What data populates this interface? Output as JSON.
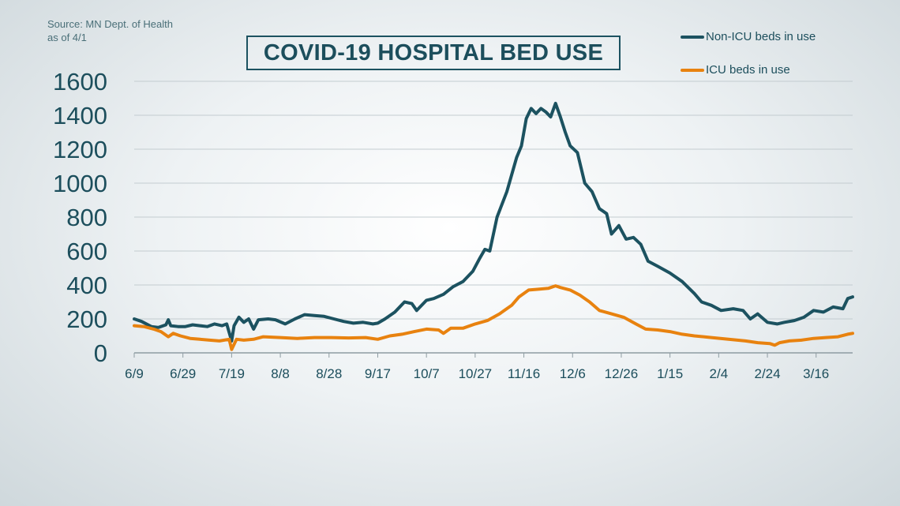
{
  "source": {
    "line1": "Source: MN Dept. of Health",
    "line2": "as of 4/1"
  },
  "colors": {
    "non_icu": "#1c5260",
    "icu": "#e8820f",
    "grid": "#c3ccd0",
    "text": "#1c4e5c"
  },
  "chart_data": {
    "type": "line",
    "title": "COVID-19 HOSPITAL BED USE",
    "xlabel": "",
    "ylabel": "",
    "ylim": [
      0,
      1600
    ],
    "yticks": [
      0,
      200,
      400,
      600,
      800,
      1000,
      1200,
      1400,
      1600
    ],
    "xlim": [
      "6/9",
      "3/31"
    ],
    "xticks": [
      "6/9",
      "6/29",
      "7/19",
      "8/8",
      "8/28",
      "9/17",
      "10/7",
      "10/27",
      "11/16",
      "12/6",
      "12/26",
      "1/15",
      "2/4",
      "2/24",
      "3/16"
    ],
    "grid": "horizontal",
    "legend_position": "top-right",
    "series": [
      {
        "name": "Non-ICU beds in use",
        "color": "#1c5260",
        "points": [
          [
            "6/9",
            200
          ],
          [
            "6/12",
            185
          ],
          [
            "6/16",
            155
          ],
          [
            "6/19",
            150
          ],
          [
            "6/22",
            165
          ],
          [
            "6/23",
            195
          ],
          [
            "6/24",
            160
          ],
          [
            "6/27",
            155
          ],
          [
            "6/30",
            155
          ],
          [
            "7/3",
            165
          ],
          [
            "7/6",
            160
          ],
          [
            "7/9",
            155
          ],
          [
            "7/12",
            170
          ],
          [
            "7/15",
            160
          ],
          [
            "7/17",
            170
          ],
          [
            "7/18",
            120
          ],
          [
            "7/19",
            70
          ],
          [
            "7/20",
            160
          ],
          [
            "7/22",
            210
          ],
          [
            "7/24",
            180
          ],
          [
            "7/26",
            200
          ],
          [
            "7/28",
            140
          ],
          [
            "7/30",
            195
          ],
          [
            "8/3",
            200
          ],
          [
            "8/6",
            195
          ],
          [
            "8/10",
            170
          ],
          [
            "8/14",
            200
          ],
          [
            "8/18",
            225
          ],
          [
            "8/22",
            220
          ],
          [
            "8/26",
            215
          ],
          [
            "8/30",
            200
          ],
          [
            "9/3",
            185
          ],
          [
            "9/7",
            175
          ],
          [
            "9/11",
            180
          ],
          [
            "9/15",
            170
          ],
          [
            "9/17",
            175
          ],
          [
            "9/20",
            200
          ],
          [
            "9/24",
            240
          ],
          [
            "9/28",
            300
          ],
          [
            "10/1",
            290
          ],
          [
            "10/3",
            250
          ],
          [
            "10/7",
            310
          ],
          [
            "10/10",
            320
          ],
          [
            "10/14",
            345
          ],
          [
            "10/18",
            390
          ],
          [
            "10/22",
            420
          ],
          [
            "10/26",
            480
          ],
          [
            "10/29",
            560
          ],
          [
            "10/31",
            610
          ],
          [
            "11/2",
            600
          ],
          [
            "11/5",
            800
          ],
          [
            "11/9",
            950
          ],
          [
            "11/13",
            1150
          ],
          [
            "11/15",
            1220
          ],
          [
            "11/17",
            1380
          ],
          [
            "11/19",
            1440
          ],
          [
            "11/21",
            1410
          ],
          [
            "11/23",
            1440
          ],
          [
            "11/25",
            1420
          ],
          [
            "11/27",
            1390
          ],
          [
            "11/29",
            1470
          ],
          [
            "12/1",
            1390
          ],
          [
            "12/3",
            1300
          ],
          [
            "12/5",
            1220
          ],
          [
            "12/8",
            1180
          ],
          [
            "12/11",
            1000
          ],
          [
            "12/14",
            950
          ],
          [
            "12/17",
            850
          ],
          [
            "12/20",
            820
          ],
          [
            "12/22",
            700
          ],
          [
            "12/25",
            750
          ],
          [
            "12/28",
            670
          ],
          [
            "12/31",
            680
          ],
          [
            "1/3",
            640
          ],
          [
            "1/6",
            540
          ],
          [
            "1/10",
            510
          ],
          [
            "1/15",
            470
          ],
          [
            "1/20",
            420
          ],
          [
            "1/25",
            350
          ],
          [
            "1/28",
            300
          ],
          [
            "2/1",
            280
          ],
          [
            "2/5",
            250
          ],
          [
            "2/10",
            260
          ],
          [
            "2/14",
            250
          ],
          [
            "2/17",
            200
          ],
          [
            "2/20",
            230
          ],
          [
            "2/24",
            180
          ],
          [
            "2/28",
            170
          ],
          [
            "3/3",
            180
          ],
          [
            "3/7",
            190
          ],
          [
            "3/11",
            210
          ],
          [
            "3/15",
            250
          ],
          [
            "3/19",
            240
          ],
          [
            "3/23",
            270
          ],
          [
            "3/27",
            260
          ],
          [
            "3/29",
            320
          ],
          [
            "3/31",
            330
          ]
        ]
      },
      {
        "name": "ICU beds in use",
        "color": "#e8820f",
        "points": [
          [
            "6/9",
            160
          ],
          [
            "6/13",
            155
          ],
          [
            "6/17",
            140
          ],
          [
            "6/20",
            125
          ],
          [
            "6/23",
            95
          ],
          [
            "6/25",
            115
          ],
          [
            "6/28",
            100
          ],
          [
            "7/2",
            85
          ],
          [
            "7/6",
            80
          ],
          [
            "7/10",
            75
          ],
          [
            "7/14",
            70
          ],
          [
            "7/18",
            80
          ],
          [
            "7/19",
            20
          ],
          [
            "7/21",
            80
          ],
          [
            "7/24",
            75
          ],
          [
            "7/28",
            80
          ],
          [
            "8/1",
            95
          ],
          [
            "8/8",
            90
          ],
          [
            "8/15",
            85
          ],
          [
            "8/22",
            90
          ],
          [
            "8/29",
            90
          ],
          [
            "9/5",
            88
          ],
          [
            "9/12",
            90
          ],
          [
            "9/17",
            80
          ],
          [
            "9/22",
            100
          ],
          [
            "9/27",
            110
          ],
          [
            "10/2",
            125
          ],
          [
            "10/7",
            140
          ],
          [
            "10/12",
            135
          ],
          [
            "10/14",
            115
          ],
          [
            "10/17",
            145
          ],
          [
            "10/22",
            145
          ],
          [
            "10/27",
            170
          ],
          [
            "11/1",
            190
          ],
          [
            "11/6",
            230
          ],
          [
            "11/11",
            280
          ],
          [
            "11/14",
            330
          ],
          [
            "11/18",
            370
          ],
          [
            "11/22",
            375
          ],
          [
            "11/26",
            380
          ],
          [
            "11/29",
            395
          ],
          [
            "12/1",
            385
          ],
          [
            "12/5",
            370
          ],
          [
            "12/9",
            340
          ],
          [
            "12/13",
            300
          ],
          [
            "12/17",
            250
          ],
          [
            "12/22",
            230
          ],
          [
            "12/27",
            210
          ],
          [
            "1/1",
            170
          ],
          [
            "1/5",
            140
          ],
          [
            "1/10",
            135
          ],
          [
            "1/15",
            125
          ],
          [
            "1/20",
            110
          ],
          [
            "1/25",
            100
          ],
          [
            "2/1",
            90
          ],
          [
            "2/8",
            80
          ],
          [
            "2/15",
            70
          ],
          [
            "2/20",
            60
          ],
          [
            "2/25",
            55
          ],
          [
            "2/27",
            45
          ],
          [
            "3/1",
            60
          ],
          [
            "3/5",
            70
          ],
          [
            "3/10",
            75
          ],
          [
            "3/15",
            85
          ],
          [
            "3/20",
            90
          ],
          [
            "3/25",
            95
          ],
          [
            "3/29",
            110
          ],
          [
            "3/31",
            115
          ]
        ]
      }
    ]
  }
}
